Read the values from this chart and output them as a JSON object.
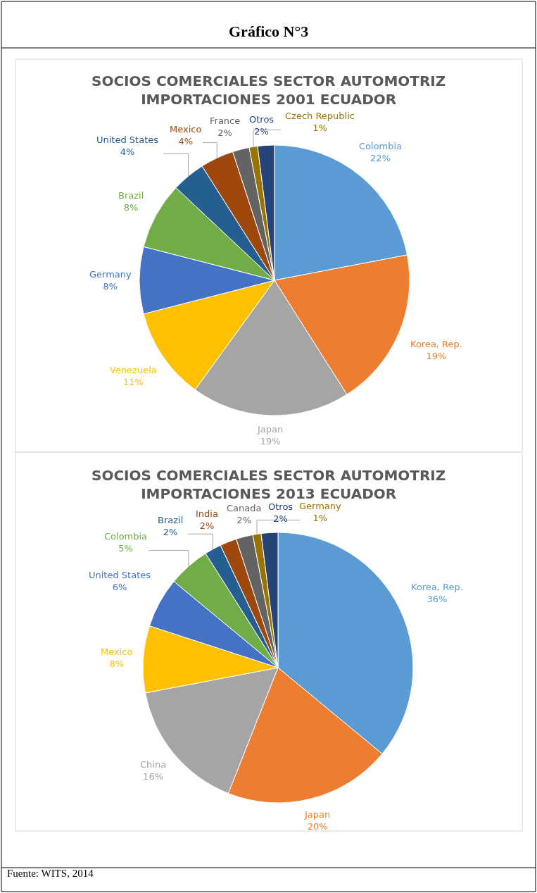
{
  "chart_data": [
    {
      "type": "pie",
      "title": "SOCIOS COMERCIALES SECTOR AUTOMOTRIZ\nIMPORTACIONES 2001 ECUADOR",
      "annotations": [
        "Gráfico N°3"
      ],
      "categories": [
        "Colombia",
        "Korea, Rep.",
        "Japan",
        "Venezuela",
        "Germany",
        "Brazil",
        "United States",
        "Mexico",
        "France",
        "Czech Republic",
        "Otros"
      ],
      "values": [
        22,
        19,
        19,
        11,
        8,
        8,
        4,
        4,
        2,
        1,
        2
      ],
      "value_labels": [
        "22%",
        "19%",
        "19%",
        "11%",
        "8%",
        "8%",
        "4%",
        "4%",
        "2%",
        "1%",
        "2%"
      ],
      "colors": [
        "#5b9bd5",
        "#ed7d31",
        "#a5a5a5",
        "#ffc000",
        "#4472c4",
        "#70ad47",
        "#255e91",
        "#9e480e",
        "#636363",
        "#997300",
        "#264478"
      ],
      "legend": false
    },
    {
      "type": "pie",
      "title": "SOCIOS COMERCIALES SECTOR AUTOMOTRIZ\nIMPORTACIONES 2013 ECUADOR",
      "annotations": [
        "Fuente: WITS, 2014"
      ],
      "categories": [
        "Korea, Rep.",
        "Japan",
        "China",
        "Mexico",
        "United States",
        "Colombia",
        "Brazil",
        "India",
        "Canada",
        "Germany",
        "Otros"
      ],
      "values": [
        36,
        20,
        16,
        8,
        6,
        5,
        2,
        2,
        2,
        1,
        2
      ],
      "value_labels": [
        "36%",
        "20%",
        "16%",
        "8%",
        "6%",
        "5%",
        "2%",
        "2%",
        "2%",
        "1%",
        "2%"
      ],
      "colors": [
        "#5b9bd5",
        "#ed7d31",
        "#a5a5a5",
        "#ffc000",
        "#4472c4",
        "#70ad47",
        "#255e91",
        "#9e480e",
        "#636363",
        "#997300",
        "#264478"
      ],
      "legend": false
    }
  ]
}
